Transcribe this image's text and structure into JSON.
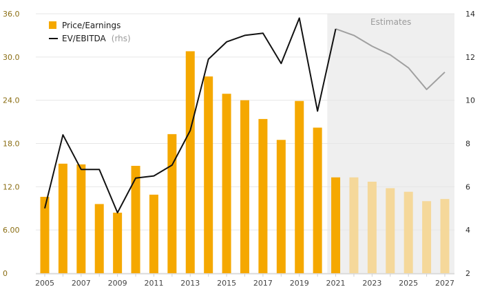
{
  "chart_data": {
    "type": "bar",
    "x": [
      2005,
      2006,
      2007,
      2008,
      2009,
      2010,
      2011,
      2012,
      2013,
      2014,
      2015,
      2016,
      2017,
      2018,
      2019,
      2020,
      2021,
      2022,
      2023,
      2024,
      2025,
      2026,
      2027
    ],
    "x_tick_labels": [
      "2005",
      "2007",
      "2009",
      "2011",
      "2013",
      "2015",
      "2017",
      "2019",
      "2021",
      "2023",
      "2025",
      "2027"
    ],
    "series": [
      {
        "name": "Price/Earnings",
        "type": "bar",
        "axis": "left",
        "color": "#f5a800",
        "estimate_color": "#f5d89a",
        "values": [
          10.6,
          15.2,
          15.1,
          9.6,
          8.4,
          14.9,
          10.9,
          19.3,
          30.8,
          27.3,
          24.9,
          24.0,
          21.4,
          18.5,
          23.9,
          20.2,
          13.3,
          13.3,
          12.7,
          11.8,
          11.3,
          10.0,
          10.3
        ]
      },
      {
        "name": "EV/EBITDA",
        "name_suffix": "(rhs)",
        "type": "line",
        "axis": "right",
        "color": "#111111",
        "estimate_color": "#a0a0a0",
        "values": [
          5.0,
          8.4,
          6.8,
          6.8,
          4.8,
          6.4,
          6.5,
          7.0,
          8.6,
          11.9,
          12.7,
          13.0,
          13.1,
          11.7,
          13.8,
          9.5,
          13.3,
          13.0,
          12.5,
          12.1,
          11.5,
          10.5,
          11.3
        ]
      }
    ],
    "estimates_start": 2021,
    "estimates_label": "Estimates",
    "y_left": {
      "lim": [
        0,
        36
      ],
      "ticks": [
        0,
        6,
        12,
        18,
        24,
        30,
        36
      ],
      "tick_labels": [
        "0",
        "6.00",
        "12.0",
        "18.0",
        "24.0",
        "30.0",
        "36.0"
      ]
    },
    "y_right": {
      "lim": [
        2,
        14
      ],
      "ticks": [
        2,
        4,
        6,
        8,
        10,
        12,
        14
      ],
      "tick_labels": [
        "2",
        "4",
        "6",
        "8",
        "10",
        "12",
        "14"
      ]
    },
    "grid": true,
    "legend_position": "top-left",
    "colors": {
      "left_tick": "#8a6d12",
      "estimates_bg": "#efefef",
      "grid": "#e6e6e6"
    }
  }
}
